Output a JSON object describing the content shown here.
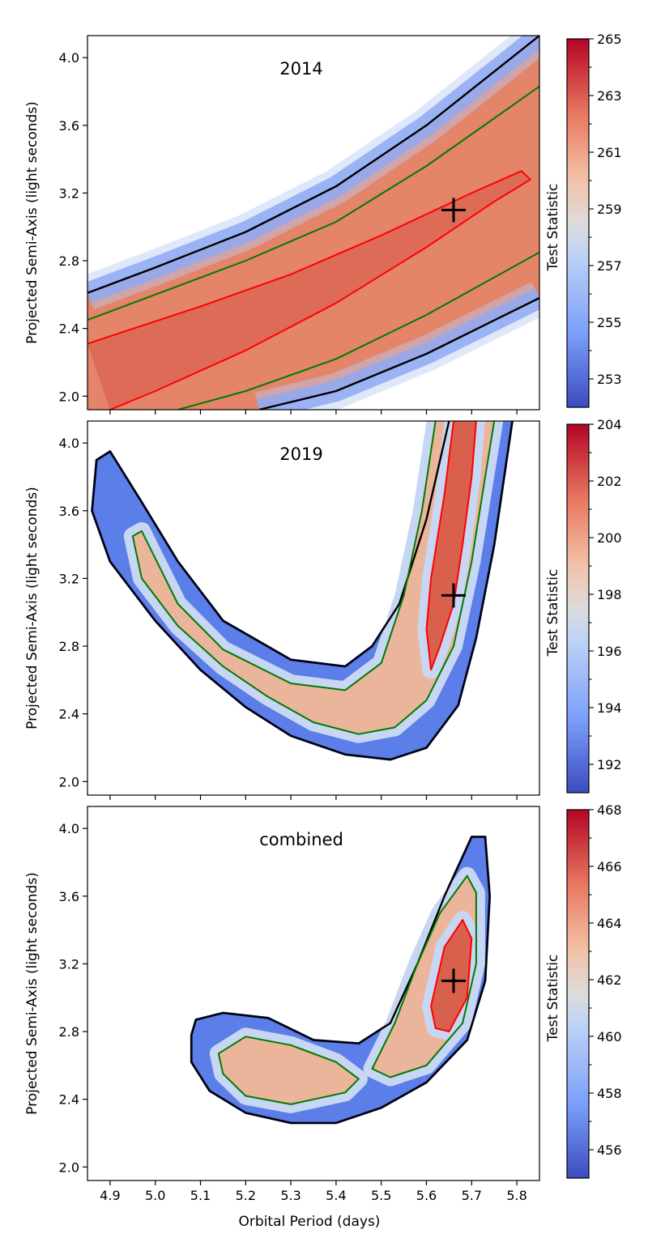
{
  "chart_data": [
    {
      "type": "heatmap",
      "annotation": "2014",
      "xlabel": "Orbital Period (days)",
      "ylabel": "Projected Semi-Axis (light seconds)",
      "xlim": [
        4.85,
        5.85
      ],
      "ylim": [
        1.92,
        4.13
      ],
      "xticks": [
        4.9,
        5.0,
        5.1,
        5.2,
        5.3,
        5.4,
        5.5,
        5.6,
        5.7,
        5.8
      ],
      "yticks": [
        2.0,
        2.4,
        2.8,
        3.2,
        3.6,
        4.0
      ],
      "colorbar": {
        "label": "Test Statistic",
        "range": [
          252,
          265
        ],
        "ticks": [
          253,
          255,
          257,
          259,
          261,
          263,
          265
        ]
      },
      "best_fit": {
        "x": 5.66,
        "y": 3.1
      },
      "contours": [
        {
          "color": "black",
          "points": [
            [
              4.85,
              2.61
            ],
            [
              5.0,
              2.76
            ],
            [
              5.2,
              2.97
            ],
            [
              5.4,
              3.24
            ],
            [
              5.6,
              3.6
            ],
            [
              5.85,
              4.13
            ]
          ]
        },
        {
          "color": "black",
          "points": [
            [
              5.23,
              1.92
            ],
            [
              5.4,
              2.03
            ],
            [
              5.6,
              2.25
            ],
            [
              5.85,
              2.58
            ]
          ]
        },
        {
          "color": "green",
          "points": [
            [
              4.85,
              2.45
            ],
            [
              5.0,
              2.6
            ],
            [
              5.2,
              2.8
            ],
            [
              5.4,
              3.03
            ],
            [
              5.6,
              3.36
            ],
            [
              5.85,
              3.83
            ]
          ]
        },
        {
          "color": "green",
          "points": [
            [
              5.05,
              1.92
            ],
            [
              5.2,
              2.03
            ],
            [
              5.4,
              2.22
            ],
            [
              5.6,
              2.48
            ],
            [
              5.85,
              2.85
            ]
          ]
        },
        {
          "color": "red",
          "points": [
            [
              4.85,
              2.31
            ],
            [
              5.1,
              2.53
            ],
            [
              5.3,
              2.72
            ],
            [
              5.5,
              2.95
            ],
            [
              5.7,
              3.2
            ],
            [
              5.81,
              3.33
            ],
            [
              5.83,
              3.28
            ],
            [
              5.75,
              3.15
            ],
            [
              5.6,
              2.88
            ],
            [
              5.4,
              2.55
            ],
            [
              5.2,
              2.27
            ],
            [
              5.0,
              2.03
            ],
            [
              4.9,
              1.92
            ]
          ]
        }
      ]
    },
    {
      "type": "heatmap",
      "annotation": "2019",
      "xlabel": "Orbital Period (days)",
      "ylabel": "Projected Semi-Axis (light seconds)",
      "xlim": [
        4.85,
        5.85
      ],
      "ylim": [
        1.92,
        4.13
      ],
      "xticks": [
        4.9,
        5.0,
        5.1,
        5.2,
        5.3,
        5.4,
        5.5,
        5.6,
        5.7,
        5.8
      ],
      "yticks": [
        2.0,
        2.4,
        2.8,
        3.2,
        3.6,
        4.0
      ],
      "colorbar": {
        "label": "Test Statistic",
        "range": [
          191,
          204
        ],
        "ticks": [
          192,
          194,
          196,
          198,
          200,
          202,
          204
        ]
      },
      "best_fit": {
        "x": 5.66,
        "y": 3.1
      },
      "contours": [
        {
          "color": "black",
          "points": [
            [
              5.65,
              4.13
            ],
            [
              5.6,
              3.55
            ],
            [
              5.54,
              3.05
            ],
            [
              5.48,
              2.8
            ],
            [
              5.42,
              2.68
            ],
            [
              5.3,
              2.72
            ],
            [
              5.15,
              2.95
            ],
            [
              5.05,
              3.3
            ],
            [
              4.97,
              3.65
            ],
            [
              4.9,
              3.95
            ],
            [
              4.87,
              3.9
            ],
            [
              4.86,
              3.6
            ],
            [
              4.9,
              3.3
            ],
            [
              5.0,
              2.95
            ],
            [
              5.1,
              2.66
            ],
            [
              5.2,
              2.44
            ],
            [
              5.3,
              2.27
            ],
            [
              5.42,
              2.16
            ],
            [
              5.52,
              2.13
            ],
            [
              5.6,
              2.2
            ],
            [
              5.67,
              2.45
            ],
            [
              5.71,
              2.85
            ],
            [
              5.75,
              3.4
            ],
            [
              5.79,
              4.13
            ]
          ]
        },
        {
          "color": "green",
          "points": [
            [
              5.62,
              4.13
            ],
            [
              5.59,
              3.6
            ],
            [
              5.55,
              3.1
            ],
            [
              5.5,
              2.7
            ],
            [
              5.42,
              2.54
            ],
            [
              5.3,
              2.58
            ],
            [
              5.15,
              2.78
            ],
            [
              5.05,
              3.05
            ],
            [
              4.97,
              3.48
            ],
            [
              4.95,
              3.45
            ],
            [
              4.97,
              3.2
            ],
            [
              5.05,
              2.92
            ],
            [
              5.15,
              2.68
            ],
            [
              5.25,
              2.5
            ],
            [
              5.35,
              2.35
            ],
            [
              5.45,
              2.28
            ],
            [
              5.53,
              2.32
            ],
            [
              5.6,
              2.48
            ],
            [
              5.66,
              2.8
            ],
            [
              5.7,
              3.3
            ],
            [
              5.73,
              3.8
            ],
            [
              5.75,
              4.13
            ]
          ]
        },
        {
          "color": "red",
          "points": [
            [
              5.66,
              4.13
            ],
            [
              5.64,
              3.7
            ],
            [
              5.61,
              3.2
            ],
            [
              5.6,
              2.9
            ],
            [
              5.61,
              2.66
            ],
            [
              5.63,
              2.8
            ],
            [
              5.66,
              3.05
            ],
            [
              5.68,
              3.4
            ],
            [
              5.7,
              3.8
            ],
            [
              5.71,
              4.13
            ]
          ]
        }
      ]
    },
    {
      "type": "heatmap",
      "annotation": "combined",
      "xlabel": "Orbital Period (days)",
      "ylabel": "Projected Semi-Axis (light seconds)",
      "xlim": [
        4.85,
        5.85
      ],
      "ylim": [
        1.92,
        4.13
      ],
      "xticks": [
        4.9,
        5.0,
        5.1,
        5.2,
        5.3,
        5.4,
        5.5,
        5.6,
        5.7,
        5.8
      ],
      "yticks": [
        2.0,
        2.4,
        2.8,
        3.2,
        3.6,
        4.0
      ],
      "colorbar": {
        "label": "Test Statistic",
        "range": [
          455,
          468
        ],
        "ticks": [
          456,
          458,
          460,
          462,
          464,
          466,
          468
        ]
      },
      "best_fit": {
        "x": 5.66,
        "y": 3.1
      },
      "contours": [
        {
          "color": "black",
          "points": [
            [
              5.09,
              2.87
            ],
            [
              5.15,
              2.91
            ],
            [
              5.25,
              2.88
            ],
            [
              5.35,
              2.75
            ],
            [
              5.45,
              2.73
            ],
            [
              5.52,
              2.85
            ],
            [
              5.58,
              3.2
            ],
            [
              5.64,
              3.6
            ],
            [
              5.7,
              3.95
            ],
            [
              5.73,
              3.95
            ],
            [
              5.74,
              3.6
            ],
            [
              5.73,
              3.1
            ],
            [
              5.69,
              2.75
            ],
            [
              5.6,
              2.5
            ],
            [
              5.5,
              2.35
            ],
            [
              5.4,
              2.26
            ],
            [
              5.3,
              2.26
            ],
            [
              5.2,
              2.32
            ],
            [
              5.12,
              2.45
            ],
            [
              5.08,
              2.62
            ],
            [
              5.08,
              2.78
            ]
          ]
        },
        {
          "color": "green",
          "points": [
            [
              5.14,
              2.67
            ],
            [
              5.2,
              2.77
            ],
            [
              5.3,
              2.72
            ],
            [
              5.4,
              2.62
            ],
            [
              5.45,
              2.52
            ],
            [
              5.42,
              2.44
            ],
            [
              5.3,
              2.37
            ],
            [
              5.2,
              2.42
            ],
            [
              5.15,
              2.55
            ]
          ]
        },
        {
          "color": "green",
          "points": [
            [
              5.48,
              2.58
            ],
            [
              5.53,
              2.85
            ],
            [
              5.58,
              3.2
            ],
            [
              5.63,
              3.5
            ],
            [
              5.69,
              3.72
            ],
            [
              5.71,
              3.62
            ],
            [
              5.71,
              3.2
            ],
            [
              5.68,
              2.85
            ],
            [
              5.6,
              2.6
            ],
            [
              5.52,
              2.53
            ]
          ]
        },
        {
          "color": "red",
          "points": [
            [
              5.61,
              2.95
            ],
            [
              5.64,
              3.3
            ],
            [
              5.68,
              3.46
            ],
            [
              5.7,
              3.35
            ],
            [
              5.69,
              3.0
            ],
            [
              5.65,
              2.8
            ],
            [
              5.62,
              2.82
            ]
          ]
        }
      ]
    }
  ]
}
